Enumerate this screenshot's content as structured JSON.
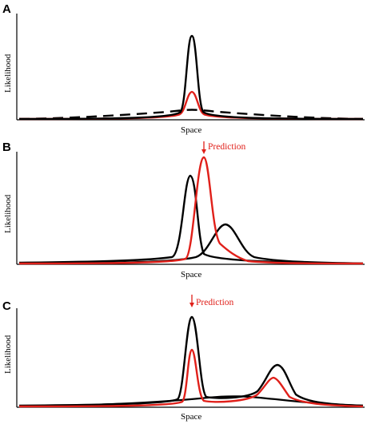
{
  "colors": {
    "black_curve": "#000000",
    "red_curve": "#e0201a"
  },
  "panels": [
    {
      "letter": "A",
      "xlabel": "Space",
      "ylabel": "Likelihood"
    },
    {
      "letter": "B",
      "xlabel": "Space",
      "ylabel": "Likelihood",
      "annotation": "Prediction"
    },
    {
      "letter": "C",
      "xlabel": "Space",
      "ylabel": "Likelihood",
      "annotation": "Prediction"
    }
  ]
}
